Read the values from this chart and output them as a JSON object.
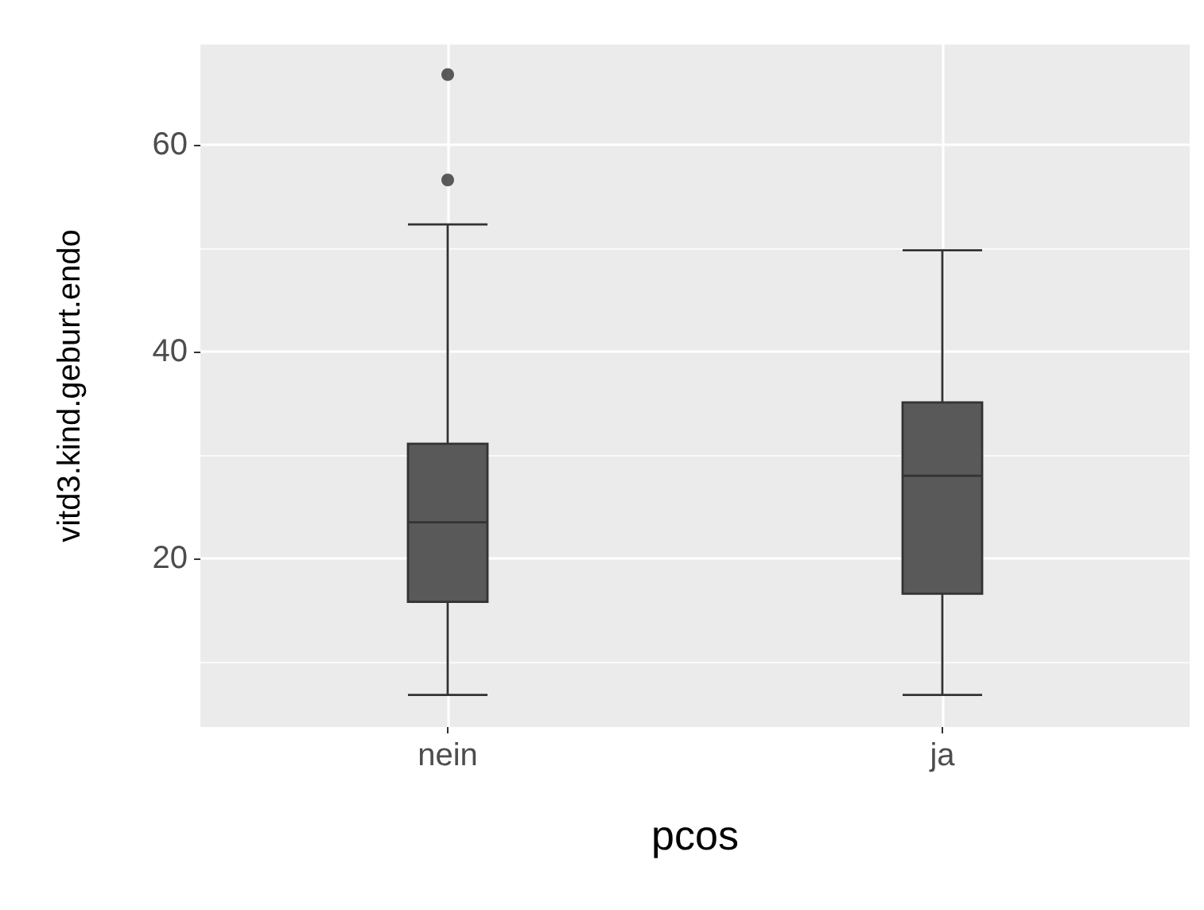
{
  "chart_data": {
    "type": "box",
    "xlabel": "pcos",
    "ylabel": "vitd3.kind.geburt.endo",
    "categories": [
      "nein",
      "ja"
    ],
    "boxes": [
      {
        "low": 6.8,
        "q1": 15.8,
        "median": 23.5,
        "q3": 31.1,
        "high": 52.3,
        "outliers": [
          56.6,
          66.8
        ]
      },
      {
        "low": 6.8,
        "q1": 16.6,
        "median": 28.0,
        "q3": 35.1,
        "high": 49.8
      }
    ],
    "color": "#595959",
    "ylim": [
      3.7,
      69.7
    ],
    "yticks": [
      {
        "value": 10,
        "label": null
      },
      20,
      {
        "value": 30,
        "label": null
      },
      40,
      {
        "value": 50,
        "label": null
      },
      60
    ],
    "grid": true
  }
}
